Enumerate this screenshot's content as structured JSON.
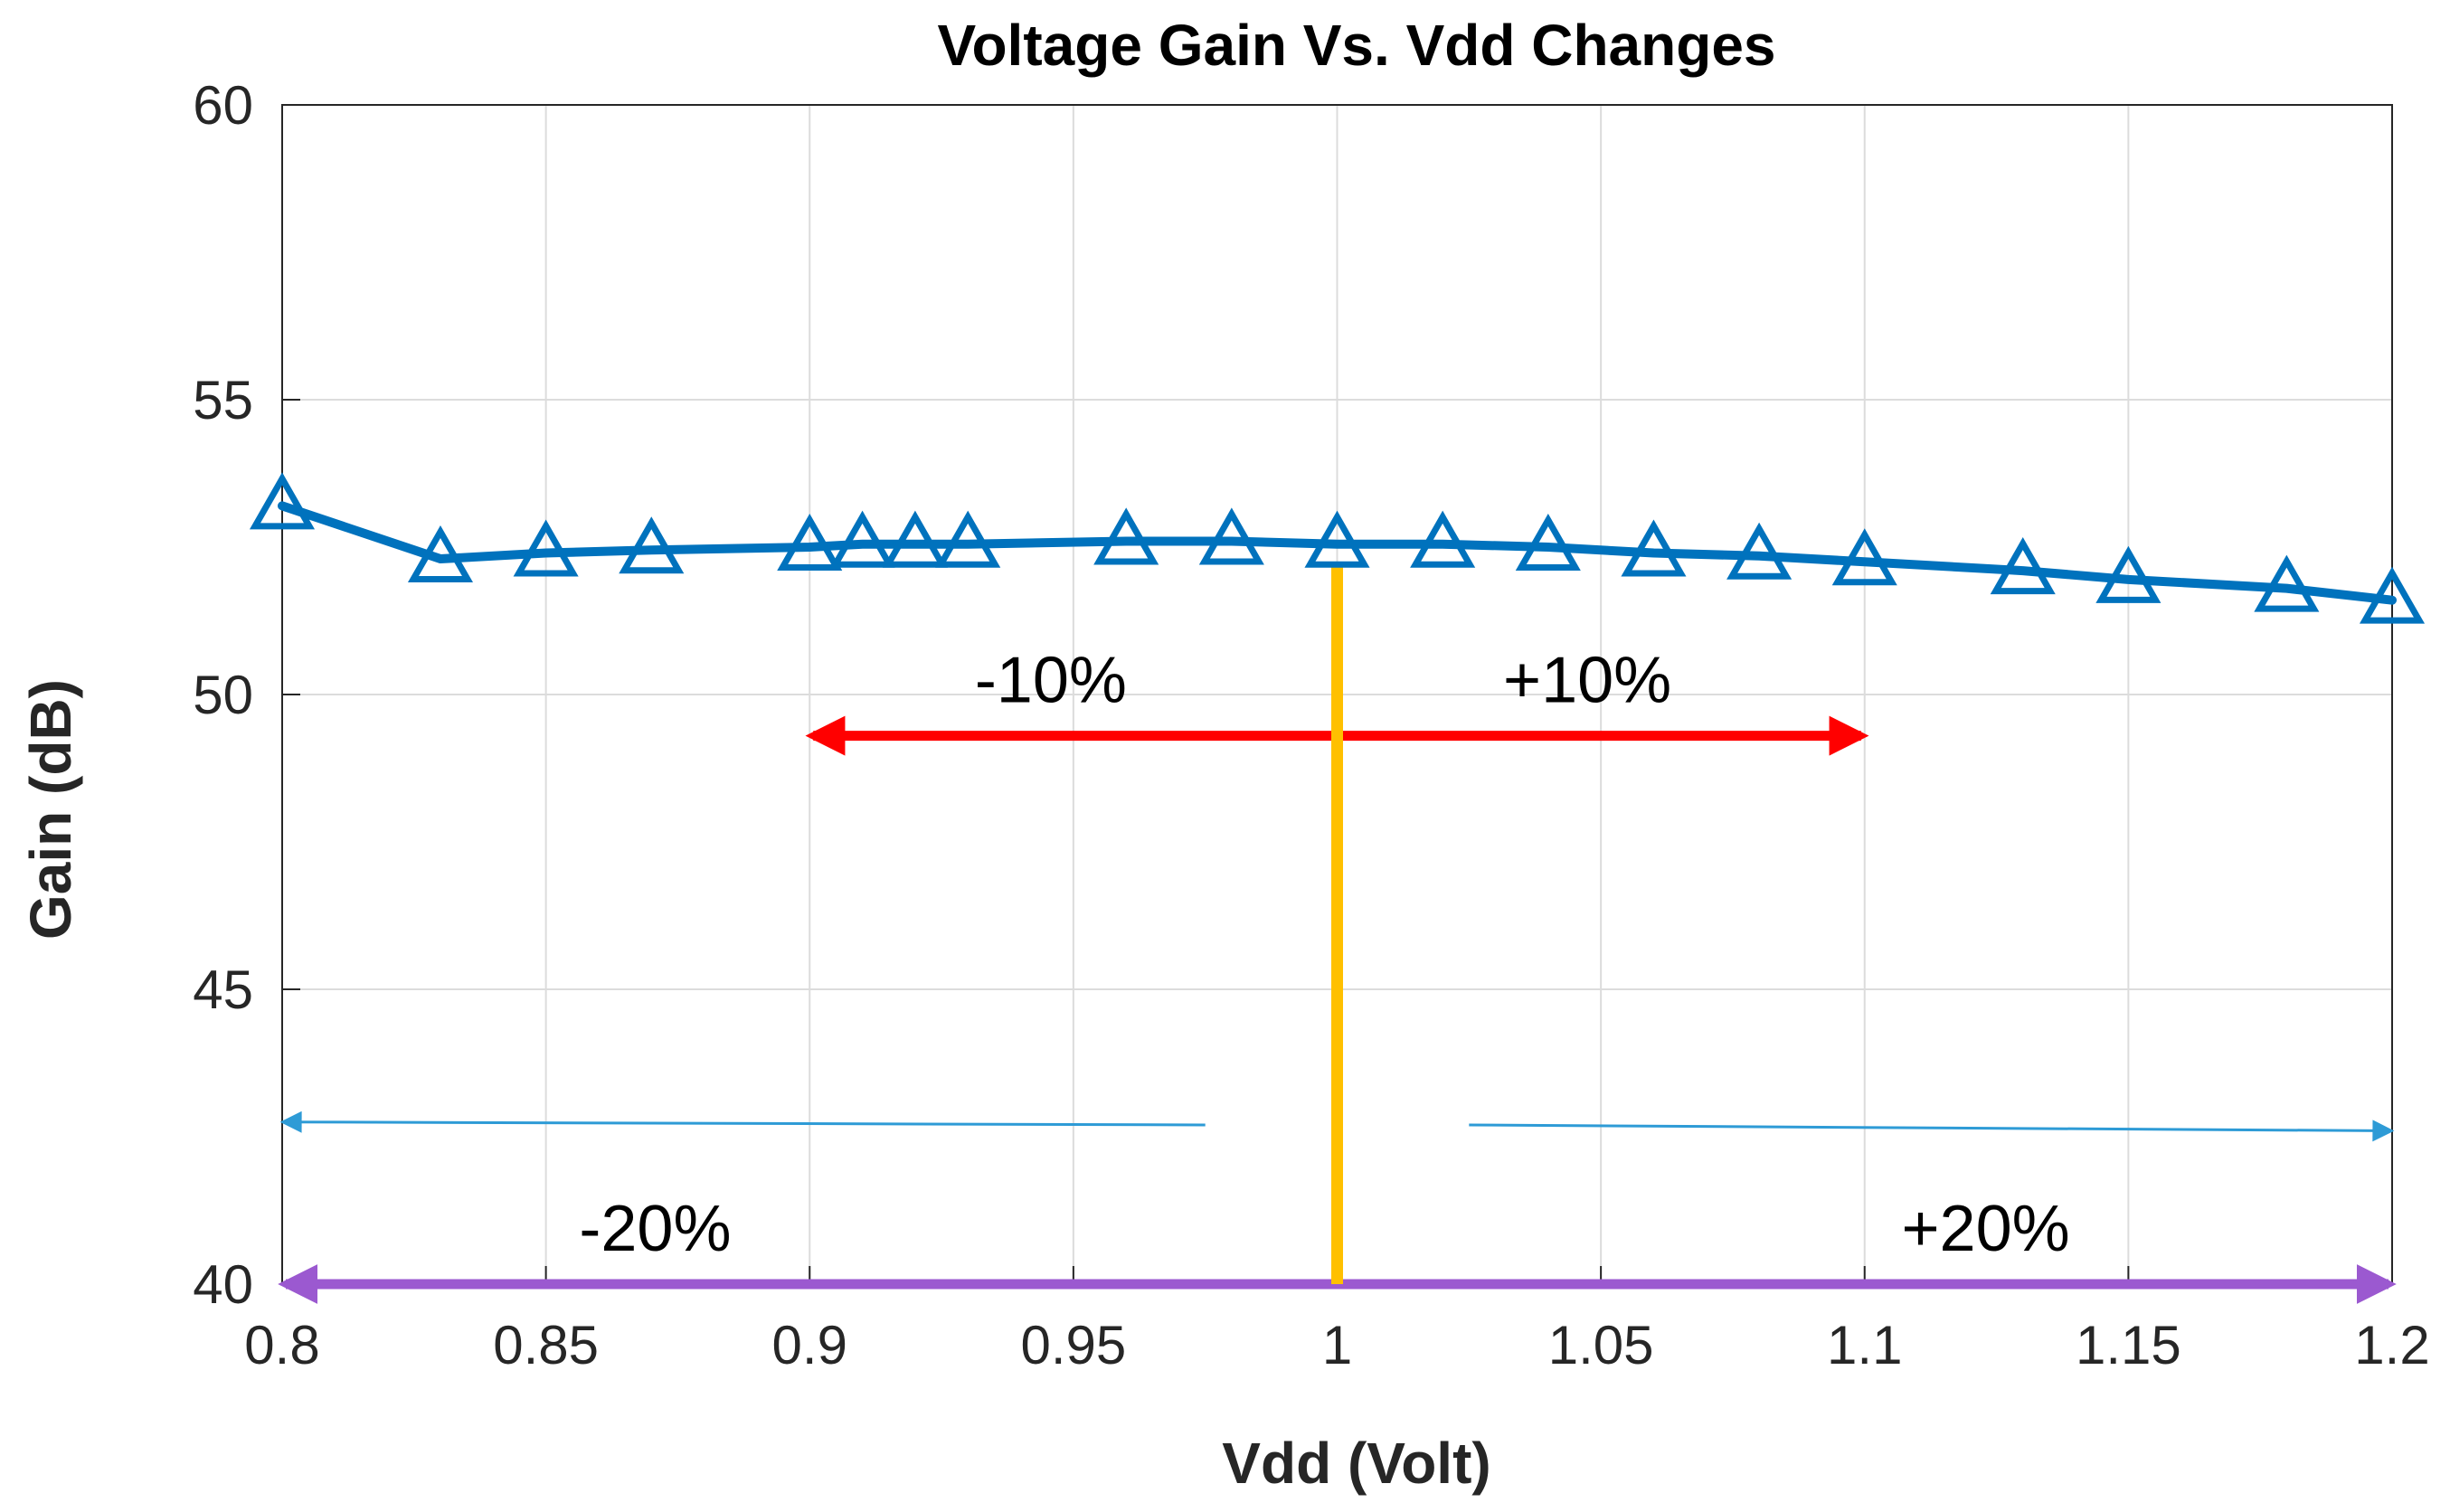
{
  "chart_data": {
    "type": "line",
    "title": "Voltage Gain Vs. Vdd Changes",
    "xlabel": "Vdd (Volt)",
    "ylabel": "Gain (dB)",
    "xlim": [
      0.8,
      1.2
    ],
    "ylim": [
      40,
      60
    ],
    "grid": true,
    "x_ticks": [
      0.8,
      0.85,
      0.9,
      0.95,
      1,
      1.05,
      1.1,
      1.15,
      1.2
    ],
    "x_tick_labels": [
      "0.8",
      "0.85",
      "0.9",
      "0.95",
      "1",
      "1.05",
      "1.1",
      "1.15",
      "1.2"
    ],
    "y_ticks": [
      40,
      45,
      50,
      55,
      60
    ],
    "y_tick_labels": [
      "40",
      "45",
      "50",
      "55",
      "60"
    ],
    "series": [
      {
        "name": "Gain",
        "color": "#0072BD",
        "marker": "triangle",
        "x": [
          0.8,
          0.83,
          0.85,
          0.87,
          0.9,
          0.91,
          0.92,
          0.93,
          0.96,
          0.98,
          1.0,
          1.02,
          1.04,
          1.06,
          1.08,
          1.1,
          1.13,
          1.15,
          1.18,
          1.2
        ],
        "y": [
          53.2,
          52.3,
          52.4,
          52.45,
          52.5,
          52.55,
          52.55,
          52.55,
          52.6,
          52.6,
          52.55,
          52.55,
          52.5,
          52.4,
          52.35,
          52.25,
          52.1,
          51.95,
          51.8,
          51.6
        ]
      }
    ],
    "annotations": {
      "center_line": {
        "x": 1.0,
        "y_from": 40,
        "y_to": 52.2,
        "color": "#FFC000"
      },
      "range_10": {
        "x_from": 0.9,
        "x_to": 1.1,
        "y": 49.3,
        "color": "#FF0000",
        "label_left": "-10%",
        "label_right": "+10%",
        "label_left_x": 0.95,
        "label_right_x": 1.05,
        "label_y": 50.3
      },
      "range_20_thin": {
        "color": "#2E9BD6",
        "left": {
          "x_from": 0.975,
          "x_to": 0.8,
          "y_from": 42.7,
          "y_to": 42.75
        },
        "right": {
          "x_from": 1.025,
          "x_to": 1.2,
          "y_from": 42.7,
          "y_to": 42.6
        }
      },
      "range_20": {
        "x_from": 0.8,
        "x_to": 1.2,
        "y": 40,
        "color": "#9B59D0",
        "label_left": "-20%",
        "label_right": "+20%",
        "label_left_x": 0.875,
        "label_right_x": 1.125,
        "label_y": 41
      }
    }
  }
}
